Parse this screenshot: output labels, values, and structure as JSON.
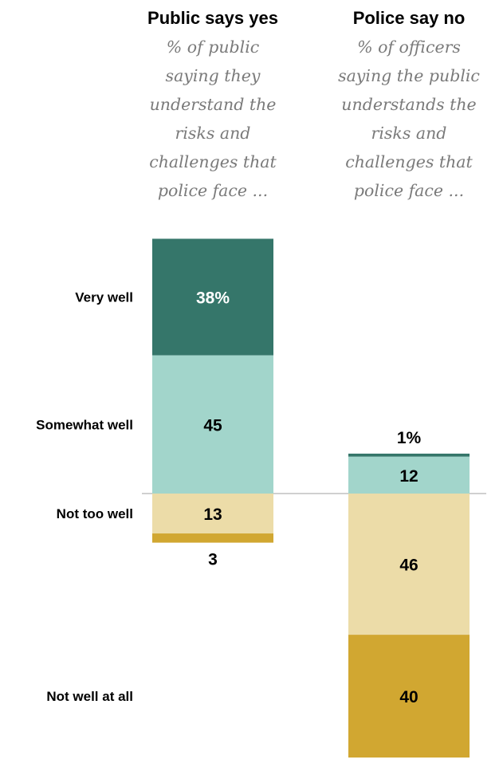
{
  "chart_data": {
    "type": "bar",
    "stacking": "diverging",
    "categories": [
      "Very well",
      "Somewhat well",
      "Not too well",
      "Not well at all"
    ],
    "series": [
      {
        "name": "Public says yes",
        "subtitle_lines": [
          "% of public",
          "saying they",
          "understand the",
          "risks and",
          "challenges that",
          "police face ..."
        ],
        "values": [
          38,
          45,
          13,
          3
        ],
        "labels": [
          "38%",
          "45",
          "13",
          "3"
        ]
      },
      {
        "name": "Police say no",
        "subtitle_lines": [
          "% of officers",
          "saying the public",
          "understands the",
          "risks and",
          "challenges that",
          "police face ..."
        ],
        "values": [
          1,
          12,
          46,
          40
        ],
        "labels": [
          "1%",
          "12",
          "46",
          "40"
        ]
      }
    ],
    "colors": [
      "#35766a",
      "#a2d5cb",
      "#ecdca8",
      "#d1a731"
    ],
    "baseline": "between Somewhat well and Not too well"
  }
}
